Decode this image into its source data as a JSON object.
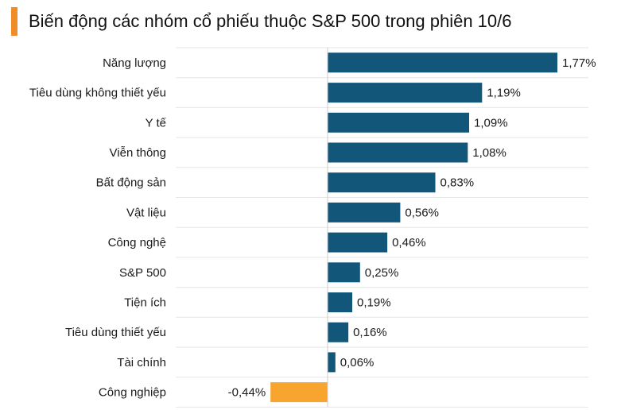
{
  "chart_data": {
    "type": "bar",
    "orientation": "horizontal",
    "title": "Biến động các nhóm cổ phiếu thuộc S&P 500 trong phiên 10/6",
    "categories": [
      "Năng lượng",
      "Tiêu dùng không thiết yếu",
      "Y tế",
      "Viễn thông",
      "Bất động sản",
      "Vật liệu",
      "Công nghệ",
      "S&P 500",
      "Tiện ích",
      "Tiêu dùng thiết yếu",
      "Tài chính",
      "Công nghiệp"
    ],
    "values": [
      1.77,
      1.19,
      1.09,
      1.08,
      0.83,
      0.56,
      0.46,
      0.25,
      0.19,
      0.16,
      0.06,
      -0.44
    ],
    "value_labels": [
      "1,77%",
      "1,19%",
      "1,09%",
      "1,08%",
      "0,83%",
      "0,56%",
      "0,46%",
      "0,25%",
      "0,19%",
      "0,16%",
      "0,06%",
      "-0,44%"
    ],
    "unit": "%",
    "xlim": [
      -1.0,
      2.0
    ],
    "grid": "horizontal",
    "colors": {
      "positive": "#12567a",
      "negative": "#f7a52f",
      "title_accent": "#f28c28"
    }
  }
}
